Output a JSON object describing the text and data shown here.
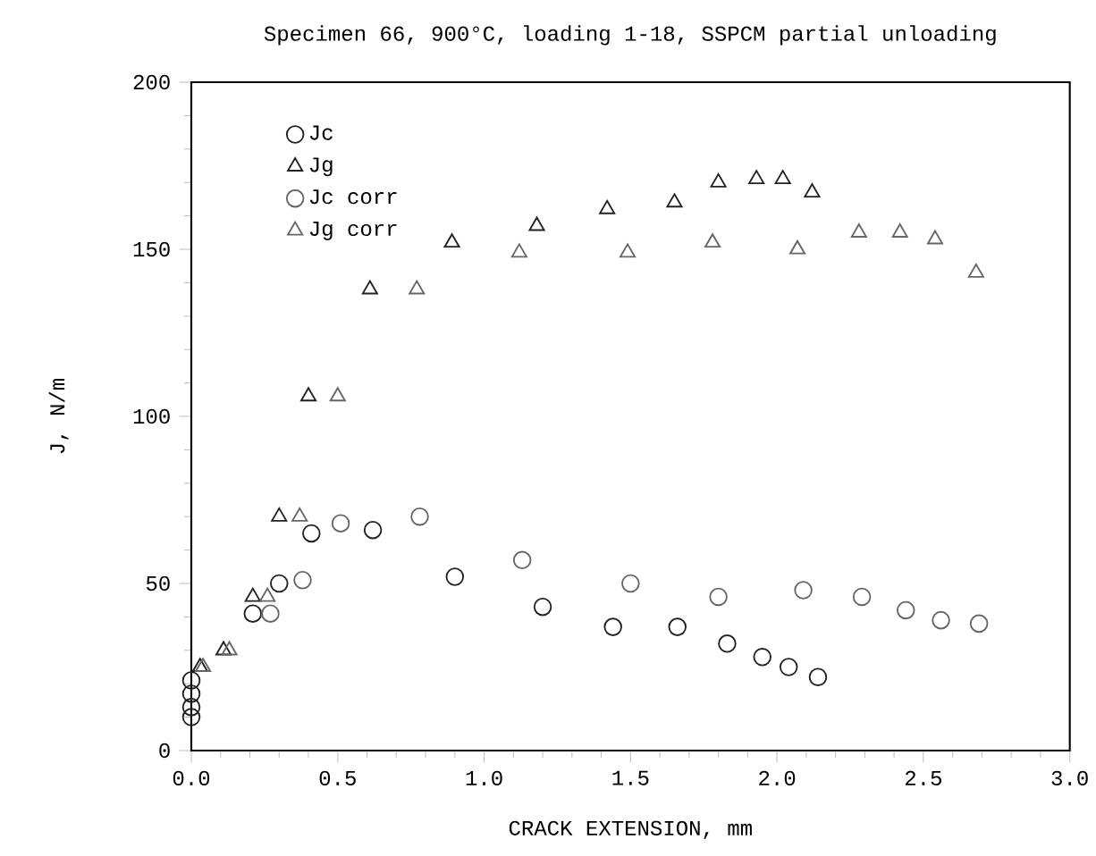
{
  "chart_data": {
    "type": "scatter",
    "title": "Specimen 66, 900°C, loading 1-18, SSPCM partial unloading",
    "xlabel": "CRACK EXTENSION, mm",
    "ylabel": "J, N/m",
    "xlim": [
      0,
      3.0
    ],
    "ylim": [
      0,
      200
    ],
    "xticks": [
      {
        "value": 0,
        "label": "0.0"
      },
      {
        "value": 0.5,
        "label": "0.5"
      },
      {
        "value": 1,
        "label": "1.0"
      },
      {
        "value": 1.5,
        "label": "1.5"
      },
      {
        "value": 2,
        "label": "2.0"
      },
      {
        "value": 2.5,
        "label": "2.5"
      },
      {
        "value": 3,
        "label": "3.0"
      }
    ],
    "yticks": [
      0,
      50,
      100,
      150,
      200
    ],
    "legend": "top left",
    "grid": false,
    "series": [
      {
        "name": "Jc",
        "color": "#222222",
        "marker": "circle",
        "x": [
          0,
          0,
          0,
          0,
          0.21,
          0.3,
          0.41,
          0.62,
          0.9,
          1.2,
          1.44,
          1.66,
          1.83,
          1.95,
          2.04,
          2.14
        ],
        "values": [
          10,
          13,
          17,
          21,
          41,
          50,
          65,
          66,
          52,
          43,
          37,
          37,
          32,
          28,
          25,
          22
        ]
      },
      {
        "name": "Jg",
        "color": "#222222",
        "marker": "triangle",
        "x": [
          0.03,
          0.11,
          0.21,
          0.3,
          0.4,
          0.61,
          0.89,
          1.18,
          1.42,
          1.65,
          1.8,
          1.93,
          2.02,
          2.12
        ],
        "values": [
          25,
          30,
          46,
          70,
          106,
          138,
          152,
          157,
          162,
          164,
          170,
          171,
          171,
          167
        ]
      },
      {
        "name": "Jc corr",
        "color": "#666666",
        "marker": "circle",
        "x": [
          0.27,
          0.38,
          0.51,
          0.78,
          1.13,
          1.5,
          1.8,
          2.09,
          2.29,
          2.44,
          2.56,
          2.69
        ],
        "values": [
          41,
          51,
          68,
          70,
          57,
          50,
          46,
          48,
          46,
          42,
          39,
          38
        ]
      },
      {
        "name": "Jg corr",
        "color": "#666666",
        "marker": "triangle",
        "x": [
          0.04,
          0.13,
          0.26,
          0.37,
          0.5,
          0.77,
          1.12,
          1.49,
          1.78,
          2.07,
          2.28,
          2.42,
          2.54,
          2.68
        ],
        "values": [
          25,
          30,
          46,
          70,
          106,
          138,
          149,
          149,
          152,
          150,
          155,
          155,
          153,
          143
        ]
      }
    ]
  }
}
